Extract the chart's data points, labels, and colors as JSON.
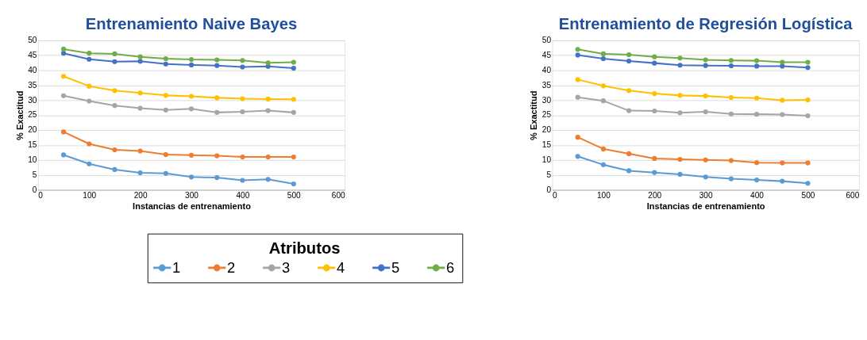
{
  "chart_data": [
    {
      "type": "line",
      "title": "Entrenamiento Naive Bayes",
      "xlabel": "Instancias de entrenamiento",
      "ylabel": "% Exactitud",
      "x": [
        50,
        100,
        150,
        200,
        250,
        300,
        350,
        400,
        450,
        500
      ],
      "xlim": [
        0,
        600
      ],
      "xticks": [
        0,
        100,
        200,
        300,
        400,
        500,
        600
      ],
      "ylim": [
        0,
        50
      ],
      "yticks": [
        0,
        5,
        10,
        15,
        20,
        25,
        30,
        35,
        40,
        45,
        50
      ],
      "grid": "y",
      "marker": "circle",
      "legend": "bottom",
      "legend_title": "Atributos",
      "series": [
        {
          "name": "1",
          "color": "#5b9bd5",
          "values": [
            11.7,
            8.7,
            6.8,
            5.7,
            5.5,
            4.3,
            4.1,
            3.2,
            3.5,
            2.0
          ]
        },
        {
          "name": "2",
          "color": "#ed7d31",
          "values": [
            19.4,
            15.4,
            13.4,
            13.0,
            11.8,
            11.6,
            11.4,
            11.0,
            11.0,
            11.0
          ]
        },
        {
          "name": "3",
          "color": "#a5a5a5",
          "values": [
            31.5,
            29.7,
            28.2,
            27.3,
            26.7,
            27.1,
            25.9,
            26.1,
            26.5,
            25.9
          ]
        },
        {
          "name": "4",
          "color": "#ffc000",
          "values": [
            38.0,
            34.7,
            33.2,
            32.4,
            31.6,
            31.3,
            30.8,
            30.5,
            30.4,
            30.3
          ]
        },
        {
          "name": "5",
          "color": "#4472c4",
          "values": [
            45.7,
            43.7,
            42.9,
            43.0,
            42.1,
            41.8,
            41.6,
            41.1,
            41.3,
            40.7
          ]
        },
        {
          "name": "6",
          "color": "#70ad47",
          "values": [
            47.1,
            45.7,
            45.5,
            44.5,
            43.9,
            43.6,
            43.5,
            43.3,
            42.5,
            42.7
          ]
        }
      ]
    },
    {
      "type": "line",
      "title": "Entrenamiento de Regresión Logística",
      "xlabel": "Instancias de entrenamiento",
      "ylabel": "% Exactitud",
      "x": [
        50,
        100,
        150,
        200,
        250,
        300,
        350,
        400,
        450,
        500
      ],
      "xlim": [
        0,
        600
      ],
      "xticks": [
        0,
        100,
        200,
        300,
        400,
        500,
        600
      ],
      "ylim": [
        0,
        50
      ],
      "yticks": [
        0,
        5,
        10,
        15,
        20,
        25,
        30,
        35,
        40,
        45,
        50
      ],
      "grid": "y",
      "marker": "circle",
      "series": [
        {
          "name": "1",
          "color": "#5b9bd5",
          "values": [
            11.2,
            8.4,
            6.4,
            5.8,
            5.2,
            4.3,
            3.7,
            3.3,
            2.9,
            2.2
          ]
        },
        {
          "name": "2",
          "color": "#ed7d31",
          "values": [
            17.6,
            13.7,
            12.1,
            10.5,
            10.2,
            10.0,
            9.8,
            9.1,
            9.0,
            9.0
          ]
        },
        {
          "name": "3",
          "color": "#a5a5a5",
          "values": [
            31.0,
            29.8,
            26.5,
            26.4,
            25.8,
            26.1,
            25.4,
            25.3,
            25.2,
            24.8
          ]
        },
        {
          "name": "4",
          "color": "#ffc000",
          "values": [
            36.9,
            34.8,
            33.2,
            32.2,
            31.6,
            31.4,
            30.9,
            30.7,
            30.0,
            30.1
          ]
        },
        {
          "name": "5",
          "color": "#4472c4",
          "values": [
            45.1,
            43.9,
            43.1,
            42.4,
            41.7,
            41.6,
            41.5,
            41.4,
            41.4,
            40.9
          ]
        },
        {
          "name": "6",
          "color": "#70ad47",
          "values": [
            47.0,
            45.5,
            45.2,
            44.5,
            44.1,
            43.5,
            43.3,
            43.2,
            42.7,
            42.7
          ]
        }
      ]
    }
  ]
}
